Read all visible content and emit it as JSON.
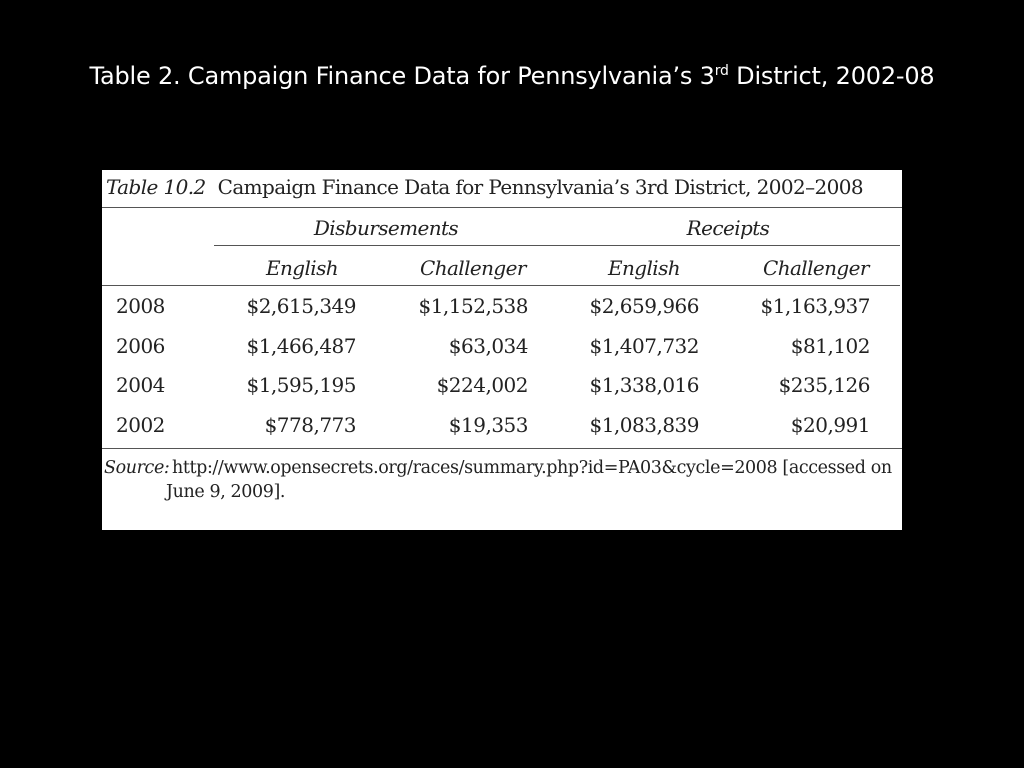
{
  "slide": {
    "title_main": "Table 2. Campaign Finance Data for Pennsylvania’s 3",
    "title_sup": "rd",
    "title_end": " District, 2002-08"
  },
  "figure": {
    "caption_number": "Table 10.2",
    "caption_text": "Campaign Finance Data for Pennsylvania’s 3rd District, 2002–2008",
    "group_headers": [
      "Disbursements",
      "Receipts"
    ],
    "column_headers": [
      "English",
      "Challenger",
      "English",
      "Challenger"
    ],
    "rows": [
      {
        "year": "2008",
        "values": [
          "$2,615,349",
          "$1,152,538",
          "$2,659,966",
          "$1,163,937"
        ]
      },
      {
        "year": "2006",
        "values": [
          "$1,466,487",
          "$63,034",
          "$1,407,732",
          "$81,102"
        ]
      },
      {
        "year": "2004",
        "values": [
          "$1,595,195",
          "$224,002",
          "$1,338,016",
          "$235,126"
        ]
      },
      {
        "year": "2002",
        "values": [
          "$778,773",
          "$19,353",
          "$1,083,839",
          "$20,991"
        ]
      }
    ],
    "source_label": "Source:",
    "source_line1": "http://www.opensecrets.org/races/summary.php?id=PA03&cycle=2008 [accessed on",
    "source_line2": "June 9, 2009]."
  }
}
